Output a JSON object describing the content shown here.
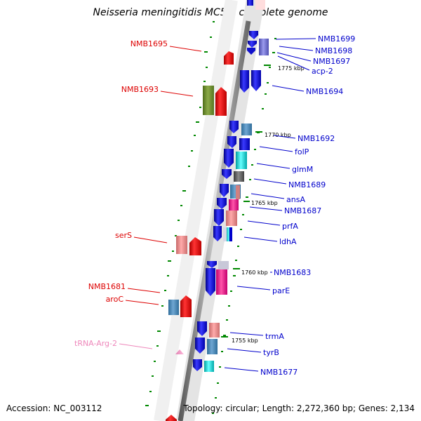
{
  "title": "Neisseria meningitidis MC58, complete genome",
  "footer": {
    "accession": "Accession: NC_003112",
    "topology": "Topology: circular; Length: 2,272,360 bp; Genes: 2,134"
  },
  "colors": {
    "right_label": "#0000cc",
    "left_label": "#dd0000",
    "trna_label": "#ee88bb",
    "backbone": "#909090",
    "tick": "#008800",
    "forward_gene": "#0000ee",
    "reverse_gene": "#ee0000"
  },
  "kbp_markers": [
    "1775 kbp",
    "1770 kbp",
    "1765 kbp",
    "1760 kbp",
    "1755 kbp"
  ],
  "right_labels": [
    "NMB1699",
    "NMB1698",
    "NMB1697",
    "acp-2",
    "NMB1694",
    "NMB1692",
    "folP",
    "glmM",
    "NMB1689",
    "ansA",
    "NMB1687",
    "prfA",
    "ldhA",
    "NMB1683",
    "parE",
    "trmA",
    "tyrB",
    "NMB1677"
  ],
  "left_labels": [
    "NMB1695",
    "NMB1693",
    "serS",
    "NMB1681",
    "aroC",
    "tRNA-Arg-2"
  ]
}
